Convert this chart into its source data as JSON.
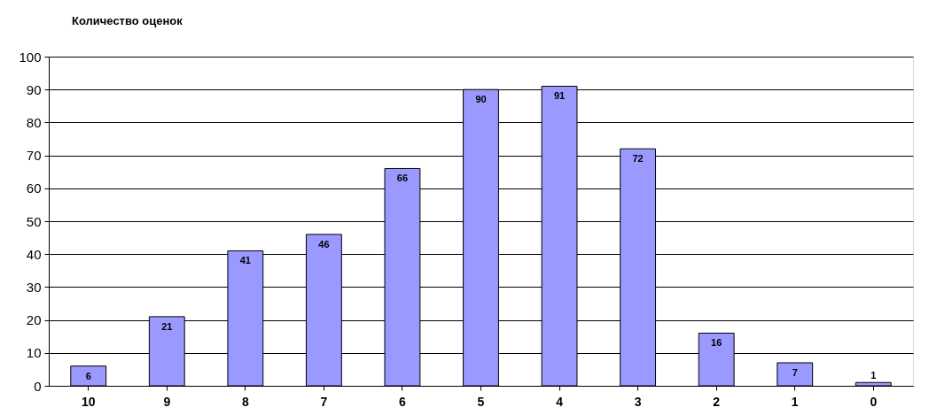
{
  "chart_data": {
    "type": "bar",
    "title": "Количество оценок",
    "categories": [
      "10",
      "9",
      "8",
      "7",
      "6",
      "5",
      "4",
      "3",
      "2",
      "1",
      "0"
    ],
    "values": [
      6,
      21,
      41,
      46,
      66,
      90,
      91,
      72,
      16,
      7,
      1
    ],
    "color": "#9999ff",
    "ylim": [
      0,
      100
    ],
    "yticks": [
      0,
      10,
      20,
      30,
      40,
      50,
      60,
      70,
      80,
      90,
      100
    ],
    "grid": "y",
    "data_labels": true
  }
}
